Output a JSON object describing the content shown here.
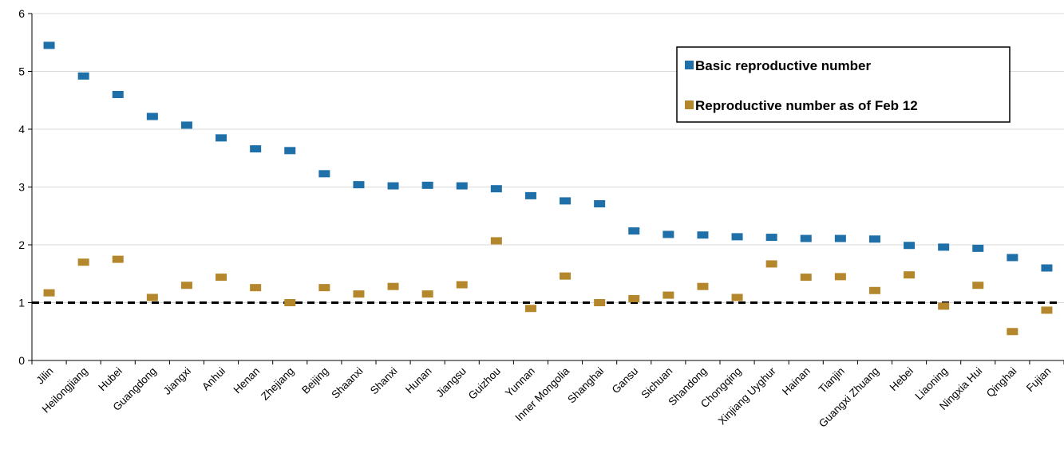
{
  "chart_data": {
    "type": "scatter",
    "categories": [
      "Jilin",
      "Heilongjiang",
      "Hubei",
      "Guangdong",
      "Jiangxi",
      "Anhui",
      "Henan",
      "Zhejiang",
      "Beijing",
      "Shaanxi",
      "Shanxi",
      "Hunan",
      "Jiangsu",
      "Guizhou",
      "Yunnan",
      "Inner Mongolia",
      "Shanghai",
      "Gansu",
      "Sichuan",
      "Shandong",
      "Chongqing",
      "Xinjiang Uyghur",
      "Hainan",
      "Tianjin",
      "Guangxi Zhuang",
      "Hebei",
      "Liaoning",
      "Ningxia Hui",
      "Qinghai",
      "Fujian"
    ],
    "series": [
      {
        "name": "Basic reproductive number",
        "color": "#1f6fa8",
        "values": [
          5.45,
          4.92,
          4.6,
          4.22,
          4.07,
          3.85,
          3.66,
          3.63,
          3.23,
          3.04,
          3.02,
          3.03,
          3.02,
          2.97,
          2.85,
          2.76,
          2.71,
          2.24,
          2.18,
          2.17,
          2.14,
          2.13,
          2.11,
          2.11,
          2.1,
          1.99,
          1.96,
          1.94,
          1.78,
          1.6
        ]
      },
      {
        "name": "Reproductive number as of Feb 12",
        "color": "#b5872c",
        "values": [
          1.17,
          1.7,
          1.75,
          1.09,
          1.3,
          1.44,
          1.26,
          1.0,
          1.26,
          1.15,
          1.28,
          1.15,
          1.31,
          2.07,
          0.9,
          1.46,
          1.0,
          1.07,
          1.13,
          1.28,
          1.09,
          1.67,
          1.44,
          1.45,
          1.21,
          1.48,
          0.94,
          1.3,
          0.5,
          0.87
        ]
      }
    ],
    "reference_line": {
      "y": 1,
      "style": "dashed",
      "color": "#000000"
    },
    "y_ticks": [
      "0",
      "1",
      "2",
      "3",
      "4",
      "5",
      "6"
    ],
    "ylim": [
      0,
      6
    ],
    "title": "",
    "xlabel": "",
    "ylabel": "",
    "grid": "horizontal",
    "legend_position": "top-right"
  }
}
